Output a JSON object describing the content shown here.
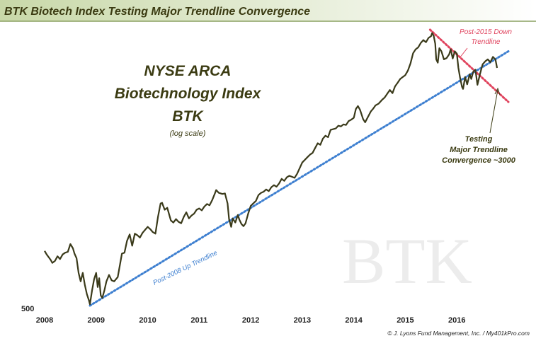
{
  "chart_data": {
    "type": "line",
    "title": "BTK Biotech Index Testing Major Trendline Convergence",
    "inset_title": [
      "NYSE ARCA",
      "Biotechnology Index",
      "BTK"
    ],
    "inset_subtitle": "(log scale)",
    "watermark": "BTK",
    "y_scale": "log",
    "ylim": [
      500,
      4000
    ],
    "y_ticks": [
      {
        "value": 500,
        "label": "500"
      }
    ],
    "xlim": [
      2008.0,
      2017.0
    ],
    "x_ticks": [
      {
        "value": 2008,
        "label": "2008"
      },
      {
        "value": 2009,
        "label": "2009"
      },
      {
        "value": 2010,
        "label": "2010"
      },
      {
        "value": 2011,
        "label": "2011"
      },
      {
        "value": 2012,
        "label": "2012"
      },
      {
        "value": 2013,
        "label": "2013"
      },
      {
        "value": 2014,
        "label": "2014"
      },
      {
        "value": 2015,
        "label": "2015"
      },
      {
        "value": 2016,
        "label": "2016"
      }
    ],
    "grid": false,
    "series": [
      {
        "color": "#3a3a1a",
        "points": [
          [
            2008.0,
            755
          ],
          [
            2008.04,
            735
          ],
          [
            2008.08,
            720
          ],
          [
            2008.12,
            705
          ],
          [
            2008.15,
            690
          ],
          [
            2008.2,
            700
          ],
          [
            2008.25,
            725
          ],
          [
            2008.3,
            710
          ],
          [
            2008.35,
            735
          ],
          [
            2008.4,
            745
          ],
          [
            2008.45,
            750
          ],
          [
            2008.5,
            795
          ],
          [
            2008.55,
            770
          ],
          [
            2008.58,
            740
          ],
          [
            2008.62,
            715
          ],
          [
            2008.66,
            640
          ],
          [
            2008.7,
            600
          ],
          [
            2008.74,
            640
          ],
          [
            2008.78,
            585
          ],
          [
            2008.82,
            545
          ],
          [
            2008.86,
            520
          ],
          [
            2008.88,
            505
          ],
          [
            2008.92,
            560
          ],
          [
            2008.96,
            610
          ],
          [
            2009.0,
            640
          ],
          [
            2009.03,
            575
          ],
          [
            2009.06,
            615
          ],
          [
            2009.09,
            540
          ],
          [
            2009.12,
            530
          ],
          [
            2009.16,
            560
          ],
          [
            2009.2,
            600
          ],
          [
            2009.25,
            630
          ],
          [
            2009.3,
            605
          ],
          [
            2009.35,
            600
          ],
          [
            2009.42,
            620
          ],
          [
            2009.5,
            740
          ],
          [
            2009.55,
            745
          ],
          [
            2009.6,
            815
          ],
          [
            2009.65,
            855
          ],
          [
            2009.7,
            785
          ],
          [
            2009.75,
            860
          ],
          [
            2009.8,
            850
          ],
          [
            2009.85,
            835
          ],
          [
            2009.9,
            865
          ],
          [
            2009.95,
            885
          ],
          [
            2010.0,
            905
          ],
          [
            2010.05,
            890
          ],
          [
            2010.1,
            870
          ],
          [
            2010.15,
            860
          ],
          [
            2010.2,
            975
          ],
          [
            2010.25,
            1080
          ],
          [
            2010.28,
            1085
          ],
          [
            2010.33,
            1030
          ],
          [
            2010.38,
            1045
          ],
          [
            2010.45,
            950
          ],
          [
            2010.5,
            935
          ],
          [
            2010.55,
            960
          ],
          [
            2010.6,
            940
          ],
          [
            2010.65,
            930
          ],
          [
            2010.7,
            975
          ],
          [
            2010.75,
            1010
          ],
          [
            2010.8,
            965
          ],
          [
            2010.85,
            985
          ],
          [
            2010.9,
            1000
          ],
          [
            2010.95,
            1030
          ],
          [
            2011.0,
            1040
          ],
          [
            2011.05,
            1025
          ],
          [
            2011.1,
            1055
          ],
          [
            2011.15,
            1075
          ],
          [
            2011.2,
            1065
          ],
          [
            2011.25,
            1105
          ],
          [
            2011.3,
            1160
          ],
          [
            2011.33,
            1195
          ],
          [
            2011.38,
            1170
          ],
          [
            2011.45,
            1160
          ],
          [
            2011.5,
            1165
          ],
          [
            2011.55,
            1080
          ],
          [
            2011.58,
            960
          ],
          [
            2011.62,
            905
          ],
          [
            2011.65,
            965
          ],
          [
            2011.7,
            935
          ],
          [
            2011.75,
            990
          ],
          [
            2011.78,
            955
          ],
          [
            2011.82,
            925
          ],
          [
            2011.86,
            910
          ],
          [
            2011.9,
            930
          ],
          [
            2011.95,
            1000
          ],
          [
            2012.0,
            1060
          ],
          [
            2012.05,
            1080
          ],
          [
            2012.1,
            1100
          ],
          [
            2012.15,
            1150
          ],
          [
            2012.2,
            1170
          ],
          [
            2012.25,
            1180
          ],
          [
            2012.3,
            1200
          ],
          [
            2012.35,
            1185
          ],
          [
            2012.4,
            1220
          ],
          [
            2012.45,
            1240
          ],
          [
            2012.5,
            1225
          ],
          [
            2012.55,
            1255
          ],
          [
            2012.6,
            1300
          ],
          [
            2012.65,
            1280
          ],
          [
            2012.7,
            1315
          ],
          [
            2012.75,
            1330
          ],
          [
            2012.8,
            1320
          ],
          [
            2012.85,
            1310
          ],
          [
            2012.9,
            1350
          ],
          [
            2012.95,
            1410
          ],
          [
            2013.0,
            1470
          ],
          [
            2013.05,
            1500
          ],
          [
            2013.1,
            1530
          ],
          [
            2013.15,
            1560
          ],
          [
            2013.2,
            1580
          ],
          [
            2013.25,
            1640
          ],
          [
            2013.3,
            1700
          ],
          [
            2013.35,
            1680
          ],
          [
            2013.4,
            1760
          ],
          [
            2013.45,
            1800
          ],
          [
            2013.5,
            1780
          ],
          [
            2013.55,
            1880
          ],
          [
            2013.6,
            1890
          ],
          [
            2013.65,
            1900
          ],
          [
            2013.7,
            1940
          ],
          [
            2013.75,
            1930
          ],
          [
            2013.8,
            1960
          ],
          [
            2013.85,
            1950
          ],
          [
            2013.9,
            2010
          ],
          [
            2013.95,
            2030
          ],
          [
            2014.0,
            2060
          ],
          [
            2014.04,
            2200
          ],
          [
            2014.08,
            2250
          ],
          [
            2014.12,
            2190
          ],
          [
            2014.18,
            2040
          ],
          [
            2014.22,
            1990
          ],
          [
            2014.28,
            2080
          ],
          [
            2014.33,
            2160
          ],
          [
            2014.38,
            2210
          ],
          [
            2014.42,
            2260
          ],
          [
            2014.48,
            2290
          ],
          [
            2014.55,
            2360
          ],
          [
            2014.6,
            2400
          ],
          [
            2014.65,
            2470
          ],
          [
            2014.7,
            2540
          ],
          [
            2014.75,
            2480
          ],
          [
            2014.8,
            2610
          ],
          [
            2014.85,
            2680
          ],
          [
            2014.9,
            2760
          ],
          [
            2014.95,
            2800
          ],
          [
            2015.0,
            2840
          ],
          [
            2015.05,
            2940
          ],
          [
            2015.1,
            3100
          ],
          [
            2015.15,
            3350
          ],
          [
            2015.2,
            3450
          ],
          [
            2015.25,
            3500
          ],
          [
            2015.3,
            3620
          ],
          [
            2015.35,
            3700
          ],
          [
            2015.4,
            3640
          ],
          [
            2015.45,
            3760
          ],
          [
            2015.5,
            3810
          ],
          [
            2015.52,
            3900
          ],
          [
            2015.55,
            3820
          ],
          [
            2015.58,
            3600
          ],
          [
            2015.6,
            3200
          ],
          [
            2015.63,
            3120
          ],
          [
            2015.66,
            3480
          ],
          [
            2015.7,
            3400
          ],
          [
            2015.75,
            3200
          ],
          [
            2015.8,
            3230
          ],
          [
            2015.85,
            3320
          ],
          [
            2015.88,
            3450
          ],
          [
            2015.92,
            3220
          ],
          [
            2015.96,
            3400
          ],
          [
            2016.0,
            3340
          ],
          [
            2016.03,
            3000
          ],
          [
            2016.06,
            2800
          ],
          [
            2016.1,
            2600
          ],
          [
            2016.12,
            2560
          ],
          [
            2016.16,
            2800
          ],
          [
            2016.2,
            2650
          ],
          [
            2016.25,
            2860
          ],
          [
            2016.28,
            2760
          ],
          [
            2016.32,
            2920
          ],
          [
            2016.36,
            2960
          ],
          [
            2016.4,
            2640
          ],
          [
            2016.45,
            2870
          ],
          [
            2016.5,
            3080
          ],
          [
            2016.55,
            3150
          ],
          [
            2016.6,
            3200
          ],
          [
            2016.65,
            3130
          ],
          [
            2016.7,
            3260
          ],
          [
            2016.75,
            3190
          ],
          [
            2016.78,
            3000
          ]
        ]
      }
    ],
    "trendlines": [
      {
        "name": "Post-2008 Up Trendline",
        "color": "#3d7fd0",
        "from": [
          2008.88,
          500
        ],
        "to": [
          2017.0,
          3400
        ]
      },
      {
        "name": "Post-2015 Down Trendline",
        "color": "#e0445e",
        "from": [
          2015.48,
          4000
        ],
        "to": [
          2017.0,
          2320
        ]
      }
    ],
    "annotations": {
      "up_trendline": "Post-2008 Up Trendline",
      "down_trendline": [
        "Post-2015 Down",
        "Trendline"
      ],
      "testing": [
        "Testing",
        "Major Trendline",
        "Convergence ~3000"
      ]
    },
    "footer": "© J. Lyons Fund Management, Inc. / My401kPro.com"
  }
}
